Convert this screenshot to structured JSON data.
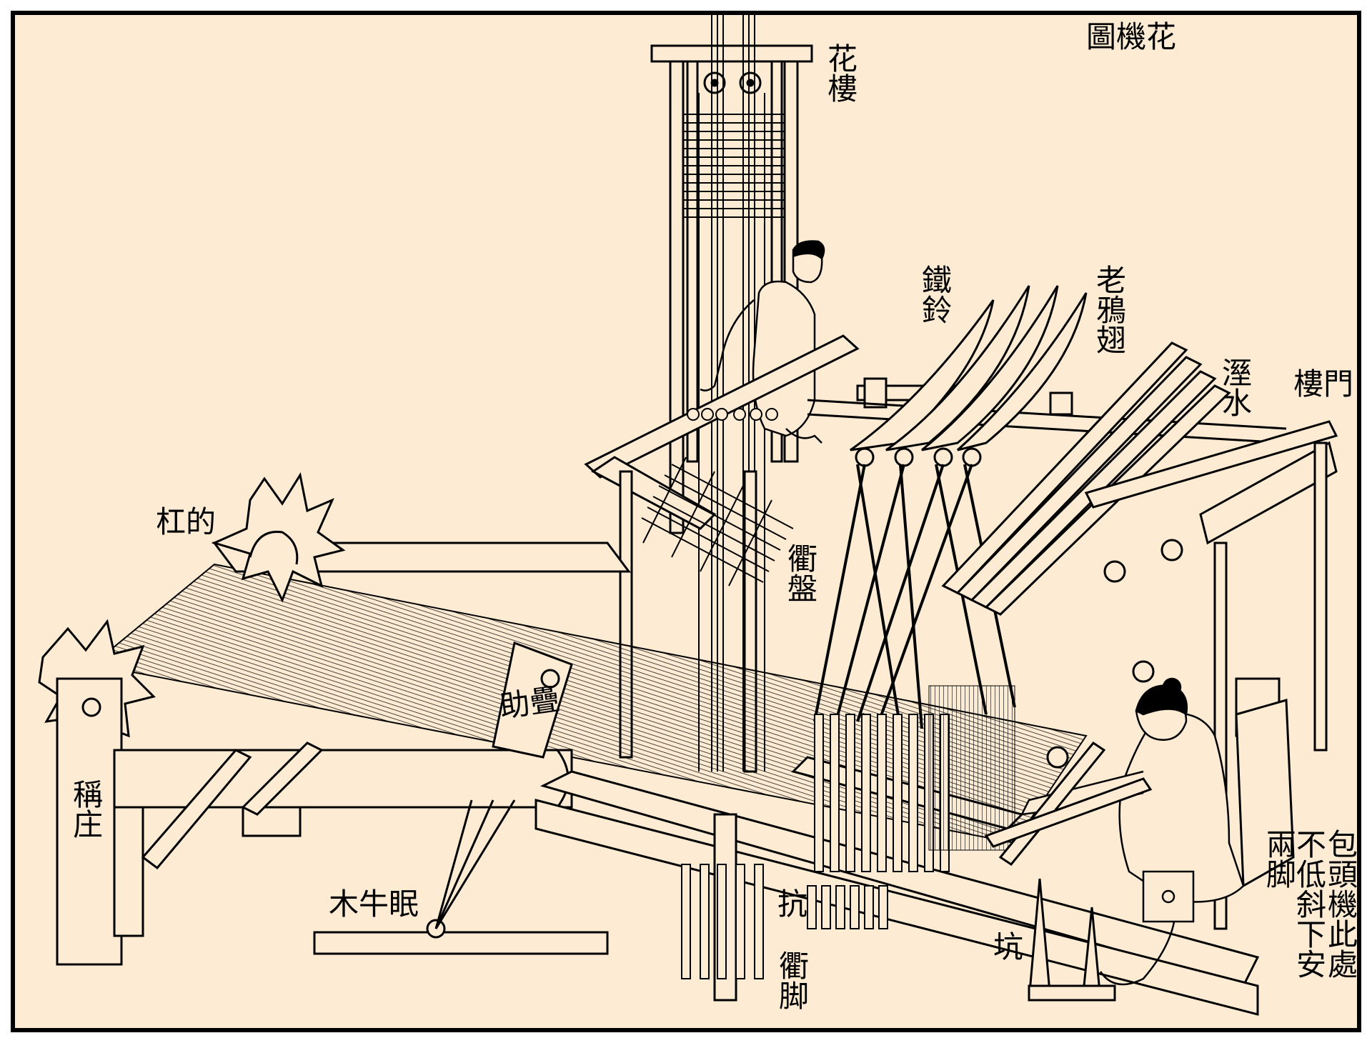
{
  "diagram": {
    "title": "圖機花",
    "background_color": "#fdebd3",
    "line_color": "#000000",
    "labels": {
      "hualou": "花樓",
      "tieling": "鐵鈴",
      "laoyachi": "老鴉翅",
      "jishui": "溼水",
      "loumen": "樓門",
      "gangdi": "杠的",
      "qupan": "衢盤",
      "zhudie": "助疊",
      "chengzhuang": "稱庄",
      "muniuyan": "木牛眠",
      "kang_left": "抗",
      "qujiao": "衢脚",
      "kang_right": "坑",
      "liangjiao": "兩脚",
      "note_col1": "包頭機此處",
      "note_col2": "不低斜下安"
    }
  }
}
